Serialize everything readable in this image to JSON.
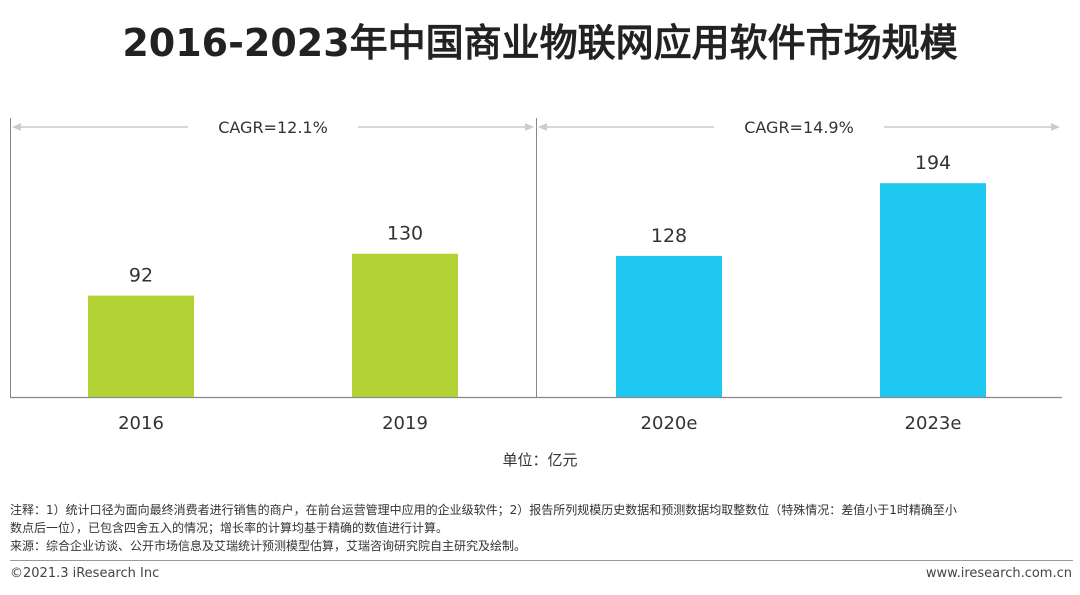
{
  "title": "2016-2023年中国商业物联网应用软件市场规模",
  "unit_label": "单位：亿元",
  "notes": {
    "note_line1": "注释：1）统计口径为面向最终消费者进行销售的商户，在前台运营管理中应用的企业级软件；2）报告所列规模历史数据和预测数据均取整数位（特殊情况：差值小于1时精确至小",
    "note_line2": "数点后一位），已包含四舍五入的情况；增长率的计算均基于精确的数值进行计算。",
    "source": "来源：综合企业访谈、公开市场信息及艾瑞统计预测模型估算，艾瑞咨询研究院自主研究及绘制。"
  },
  "footer": {
    "copyright": "©2021.3 iResearch Inc",
    "website": "www.iresearch.com.cn"
  },
  "colors": {
    "historical": "#b3d334",
    "forecast": "#1ec8f0",
    "axis": "#888888",
    "arrow": "#cccccc"
  },
  "chart_data": {
    "type": "bar",
    "categories": [
      "2016",
      "2019",
      "2020e",
      "2023e"
    ],
    "values": [
      92,
      130,
      128,
      194
    ],
    "ylim": [
      0,
      215
    ],
    "grid": false,
    "xlabel": "",
    "ylabel": "",
    "annotations": [
      {
        "text": "CAGR=12.1%",
        "from": "2016",
        "to": "2019"
      },
      {
        "text": "CAGR=14.9%",
        "from": "2020e",
        "to": "2023e"
      }
    ]
  }
}
